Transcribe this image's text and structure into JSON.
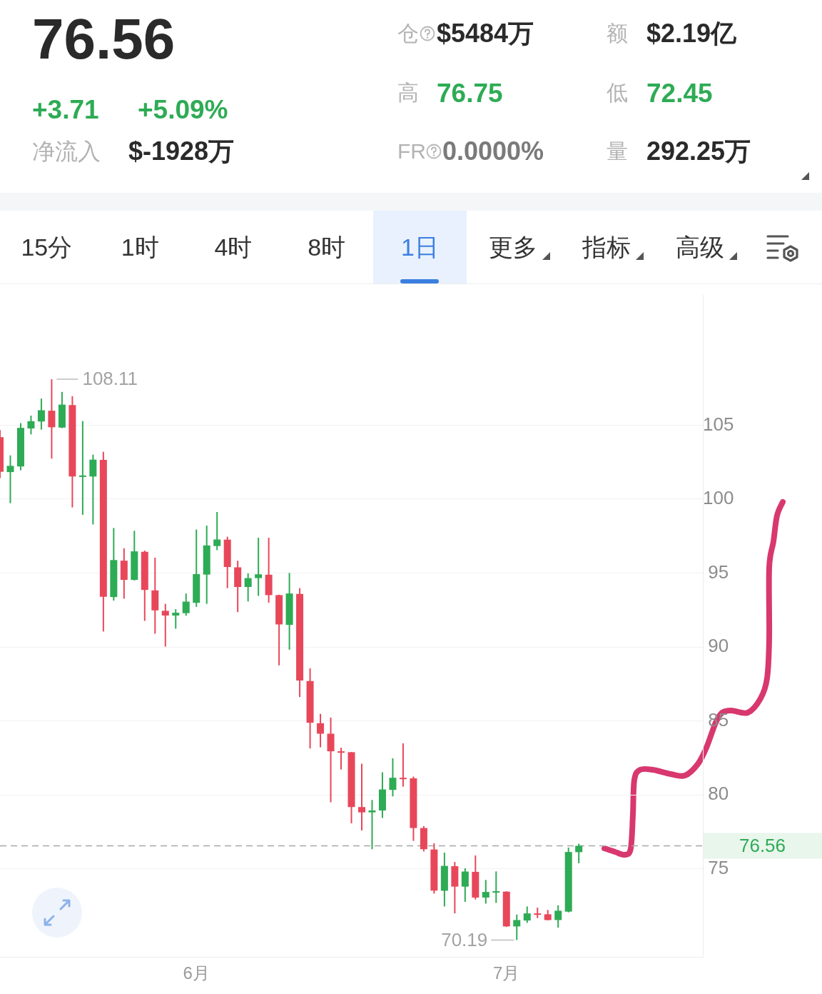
{
  "chart_data": [
    {
      "type": "other",
      "annotations": [
        "76.56",
        "仓",
        "$5484万",
        "额",
        "$2.19亿",
        "高",
        "76.75",
        "低",
        "72.45",
        "+3.71",
        "+5.09%",
        "净流入",
        "$-1928万",
        "FR",
        "0.0000%",
        "量",
        "292.25万",
        "15分",
        "1时",
        "4时",
        "8时",
        "1日",
        "更多",
        "指标",
        "高级"
      ]
    },
    {
      "type": "candlestick",
      "x": [
        "--05-13",
        "--05-14",
        "--05-15",
        "--05-16",
        "--05-17",
        "--05-18",
        "--05-19",
        "--05-20",
        "--05-21",
        "--05-22",
        "--05-23",
        "--05-24",
        "--05-25",
        "--05-26",
        "--05-27",
        "--05-28",
        "--05-29",
        "--05-30",
        "--05-31",
        "--06-01",
        "--06-02",
        "--06-03",
        "--06-04",
        "--06-05",
        "--06-06",
        "--06-07",
        "--06-08",
        "--06-09",
        "--06-10",
        "--06-11",
        "--06-12",
        "--06-13",
        "--06-14",
        "--06-15",
        "--06-16",
        "--06-17",
        "--06-18",
        "--06-19",
        "--06-20",
        "--06-21",
        "--06-22",
        "--06-23",
        "--06-24",
        "--06-25",
        "--06-26",
        "--06-27",
        "--06-28",
        "--06-29",
        "--06-30",
        "--07-01",
        "--07-02",
        "--07-03",
        "--07-04",
        "--07-05",
        "--07-06",
        "--07-07",
        "--07-08"
      ],
      "ohlc": [
        [
          104.19,
          104.67,
          101.42,
          101.85
        ],
        [
          101.83,
          102.96,
          99.73,
          102.25
        ],
        [
          102.21,
          105.14,
          101.95,
          104.82
        ],
        [
          104.78,
          105.65,
          104.38,
          105.27
        ],
        [
          105.25,
          106.8,
          104.7,
          106.01
        ],
        [
          105.98,
          108.11,
          102.74,
          104.86
        ],
        [
          104.84,
          107.25,
          104.8,
          106.39
        ],
        [
          106.36,
          106.96,
          99.44,
          101.53
        ],
        [
          101.55,
          105.28,
          98.94,
          101.6
        ],
        [
          101.53,
          103.01,
          98.29,
          102.67
        ],
        [
          102.66,
          103.2,
          91.05,
          93.4
        ],
        [
          93.38,
          98.05,
          93.14,
          95.88
        ],
        [
          95.84,
          96.68,
          93.27,
          94.54
        ],
        [
          94.54,
          97.86,
          94.5,
          96.47
        ],
        [
          96.44,
          96.52,
          91.77,
          93.86
        ],
        [
          93.83,
          96.04,
          90.9,
          92.48
        ],
        [
          92.45,
          92.92,
          90.03,
          92.13
        ],
        [
          92.13,
          92.56,
          91.24,
          92.32
        ],
        [
          92.29,
          93.62,
          92.12,
          93.07
        ],
        [
          92.99,
          97.94,
          92.72,
          94.93
        ],
        [
          94.9,
          98.21,
          92.92,
          96.87
        ],
        [
          96.83,
          99.13,
          96.55,
          97.27
        ],
        [
          97.26,
          97.46,
          93.98,
          95.41
        ],
        [
          95.39,
          95.84,
          92.36,
          94.06
        ],
        [
          94.06,
          94.98,
          93.08,
          94.66
        ],
        [
          94.66,
          97.39,
          93.46,
          94.92
        ],
        [
          94.89,
          97.39,
          93.0,
          93.51
        ],
        [
          93.51,
          93.54,
          88.76,
          91.53
        ],
        [
          91.5,
          95.01,
          89.82,
          93.62
        ],
        [
          93.59,
          93.98,
          86.62,
          87.73
        ],
        [
          87.7,
          88.56,
          83.14,
          84.88
        ],
        [
          84.85,
          85.48,
          83.22,
          84.14
        ],
        [
          84.14,
          85.23,
          79.5,
          82.95
        ],
        [
          82.95,
          83.19,
          81.72,
          82.9
        ],
        [
          82.89,
          82.9,
          78.08,
          79.18
        ],
        [
          79.18,
          82.11,
          77.6,
          78.82
        ],
        [
          78.82,
          79.66,
          76.33,
          78.95
        ],
        [
          78.95,
          81.53,
          78.44,
          80.37
        ],
        [
          80.34,
          82.48,
          79.9,
          81.16
        ],
        [
          81.16,
          83.49,
          80.56,
          81.12
        ],
        [
          81.12,
          81.24,
          76.89,
          77.76
        ],
        [
          77.76,
          77.89,
          76.18,
          76.33
        ],
        [
          76.31,
          76.73,
          73.33,
          73.53
        ],
        [
          73.52,
          76.1,
          72.46,
          75.2
        ],
        [
          75.18,
          75.47,
          71.99,
          73.8
        ],
        [
          73.8,
          75.04,
          72.77,
          74.82
        ],
        [
          74.8,
          75.91,
          72.93,
          73.06
        ],
        [
          73.06,
          74.25,
          72.65,
          73.44
        ],
        [
          73.44,
          74.83,
          72.7,
          73.49
        ],
        [
          73.46,
          73.49,
          71.08,
          71.11
        ],
        [
          71.11,
          71.91,
          70.19,
          71.54
        ],
        [
          71.51,
          72.46,
          71.35,
          71.99
        ],
        [
          71.99,
          72.38,
          71.67,
          71.95
        ],
        [
          71.93,
          72.22,
          71.52,
          71.54
        ],
        [
          71.54,
          72.54,
          71.03,
          72.17
        ],
        [
          72.11,
          76.44,
          72.06,
          76.14
        ],
        [
          76.13,
          76.7,
          75.38,
          76.56
        ]
      ],
      "colors": [
        "#e8475a",
        "#2eab55",
        "#2eab55",
        "#2eab55",
        "#2eab55",
        "#e8475a",
        "#2eab55",
        "#e8475a",
        "#2eab55",
        "#2eab55",
        "#e8475a",
        "#2eab55",
        "#e8475a",
        "#2eab55",
        "#e8475a",
        "#e8475a",
        "#e8475a",
        "#2eab55",
        "#2eab55",
        "#2eab55",
        "#2eab55",
        "#2eab55",
        "#e8475a",
        "#e8475a",
        "#2eab55",
        "#2eab55",
        "#e8475a",
        "#e8475a",
        "#2eab55",
        "#e8475a",
        "#e8475a",
        "#e8475a",
        "#e8475a",
        "#e8475a",
        "#e8475a",
        "#e8475a",
        "#2eab55",
        "#2eab55",
        "#2eab55",
        "#e8475a",
        "#e8475a",
        "#e8475a",
        "#e8475a",
        "#2eab55",
        "#e8475a",
        "#2eab55",
        "#e8475a",
        "#2eab55",
        "#2eab55",
        "#e8475a",
        "#2eab55",
        "#2eab55",
        "#e8475a",
        "#e8475a",
        "#2eab55",
        "#2eab55",
        "#2eab55"
      ],
      "xlim": [
        "--05-13",
        "--07-20"
      ],
      "xticks": [
        {
          "value": "--06-01",
          "label": "6月"
        },
        {
          "value": "--07-01",
          "label": "7月"
        }
      ],
      "ylim": [
        69.05,
        113.78
      ],
      "yticks": [
        75,
        80,
        85,
        90,
        95,
        100,
        105
      ],
      "grid": "y",
      "ref_lines": [
        {
          "axis": "y",
          "value": 76.56,
          "label": "76.56",
          "color": "#a8a8a8",
          "line_style": "dashed"
        }
      ],
      "annotations": [
        {
          "text": "108.11",
          "x": "--05-18",
          "y": 108.11
        },
        {
          "text": "70.19",
          "x": "--07-02",
          "y": 70.19
        }
      ]
    }
  ]
}
